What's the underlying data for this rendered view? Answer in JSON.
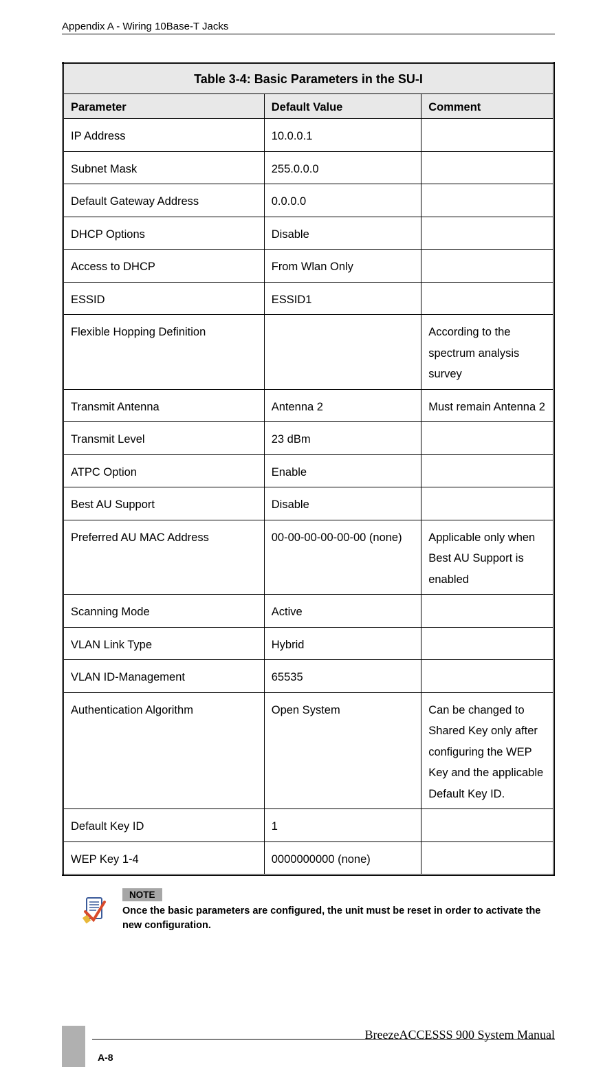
{
  "header": {
    "left": "Appendix A - Wiring 10Base-T Jacks"
  },
  "table": {
    "title": "Table 3-4: Basic Parameters in the SU-I",
    "columns": {
      "param": "Parameter",
      "default": "Default Value",
      "comment": "Comment"
    },
    "rows": [
      {
        "param": "IP Address",
        "default": "10.0.0.1",
        "comment": ""
      },
      {
        "param": "Subnet Mask",
        "default": "255.0.0.0",
        "comment": ""
      },
      {
        "param": "Default Gateway Address",
        "default": "0.0.0.0",
        "comment": ""
      },
      {
        "param": "DHCP Options",
        "default": "Disable",
        "comment": ""
      },
      {
        "param": "Access to DHCP",
        "default": "From Wlan Only",
        "comment": ""
      },
      {
        "param": "ESSID",
        "default": "ESSID1",
        "comment": ""
      },
      {
        "param": "Flexible Hopping Definition",
        "default": "",
        "comment": "According to the spectrum analysis survey"
      },
      {
        "param": "Transmit Antenna",
        "default": "Antenna 2",
        "comment": "Must remain Antenna 2"
      },
      {
        "param": "Transmit Level",
        "default": "23 dBm",
        "comment": ""
      },
      {
        "param": "ATPC Option",
        "default": "Enable",
        "comment": ""
      },
      {
        "param": "Best AU Support",
        "default": "Disable",
        "comment": ""
      },
      {
        "param": "Preferred AU MAC Address",
        "default": "00-00-00-00-00-00 (none)",
        "comment": "Applicable only when Best AU Support is enabled"
      },
      {
        "param": "Scanning Mode",
        "default": "Active",
        "comment": ""
      },
      {
        "param": "VLAN Link Type",
        "default": "Hybrid",
        "comment": ""
      },
      {
        "param": "VLAN ID-Management",
        "default": "65535",
        "comment": ""
      },
      {
        "param": "Authentication Algorithm",
        "default": "Open System",
        "comment": "Can be changed to Shared Key only after configuring the WEP Key and the applicable Default Key ID."
      },
      {
        "param": "Default Key ID",
        "default": "1",
        "comment": ""
      },
      {
        "param": "WEP Key 1-4",
        "default": "0000000000 (none)",
        "comment": ""
      }
    ],
    "styling": {
      "type": "table",
      "header_bg": "#e8e8e8",
      "border_color": "#000000",
      "font_size": 16.5,
      "title_font_size": 18,
      "line_height": 1.85,
      "col_widths_pct": [
        41,
        32,
        27
      ]
    }
  },
  "note": {
    "label": "NOTE",
    "text": "Once the basic parameters are configured, the unit must be reset in order to activate the new configuration.",
    "label_bg": "#a6a6a6"
  },
  "footer": {
    "brand": "BreezeACCESSS 900 System Manual",
    "page": "A-8",
    "tab_color": "#b0b0b0"
  }
}
